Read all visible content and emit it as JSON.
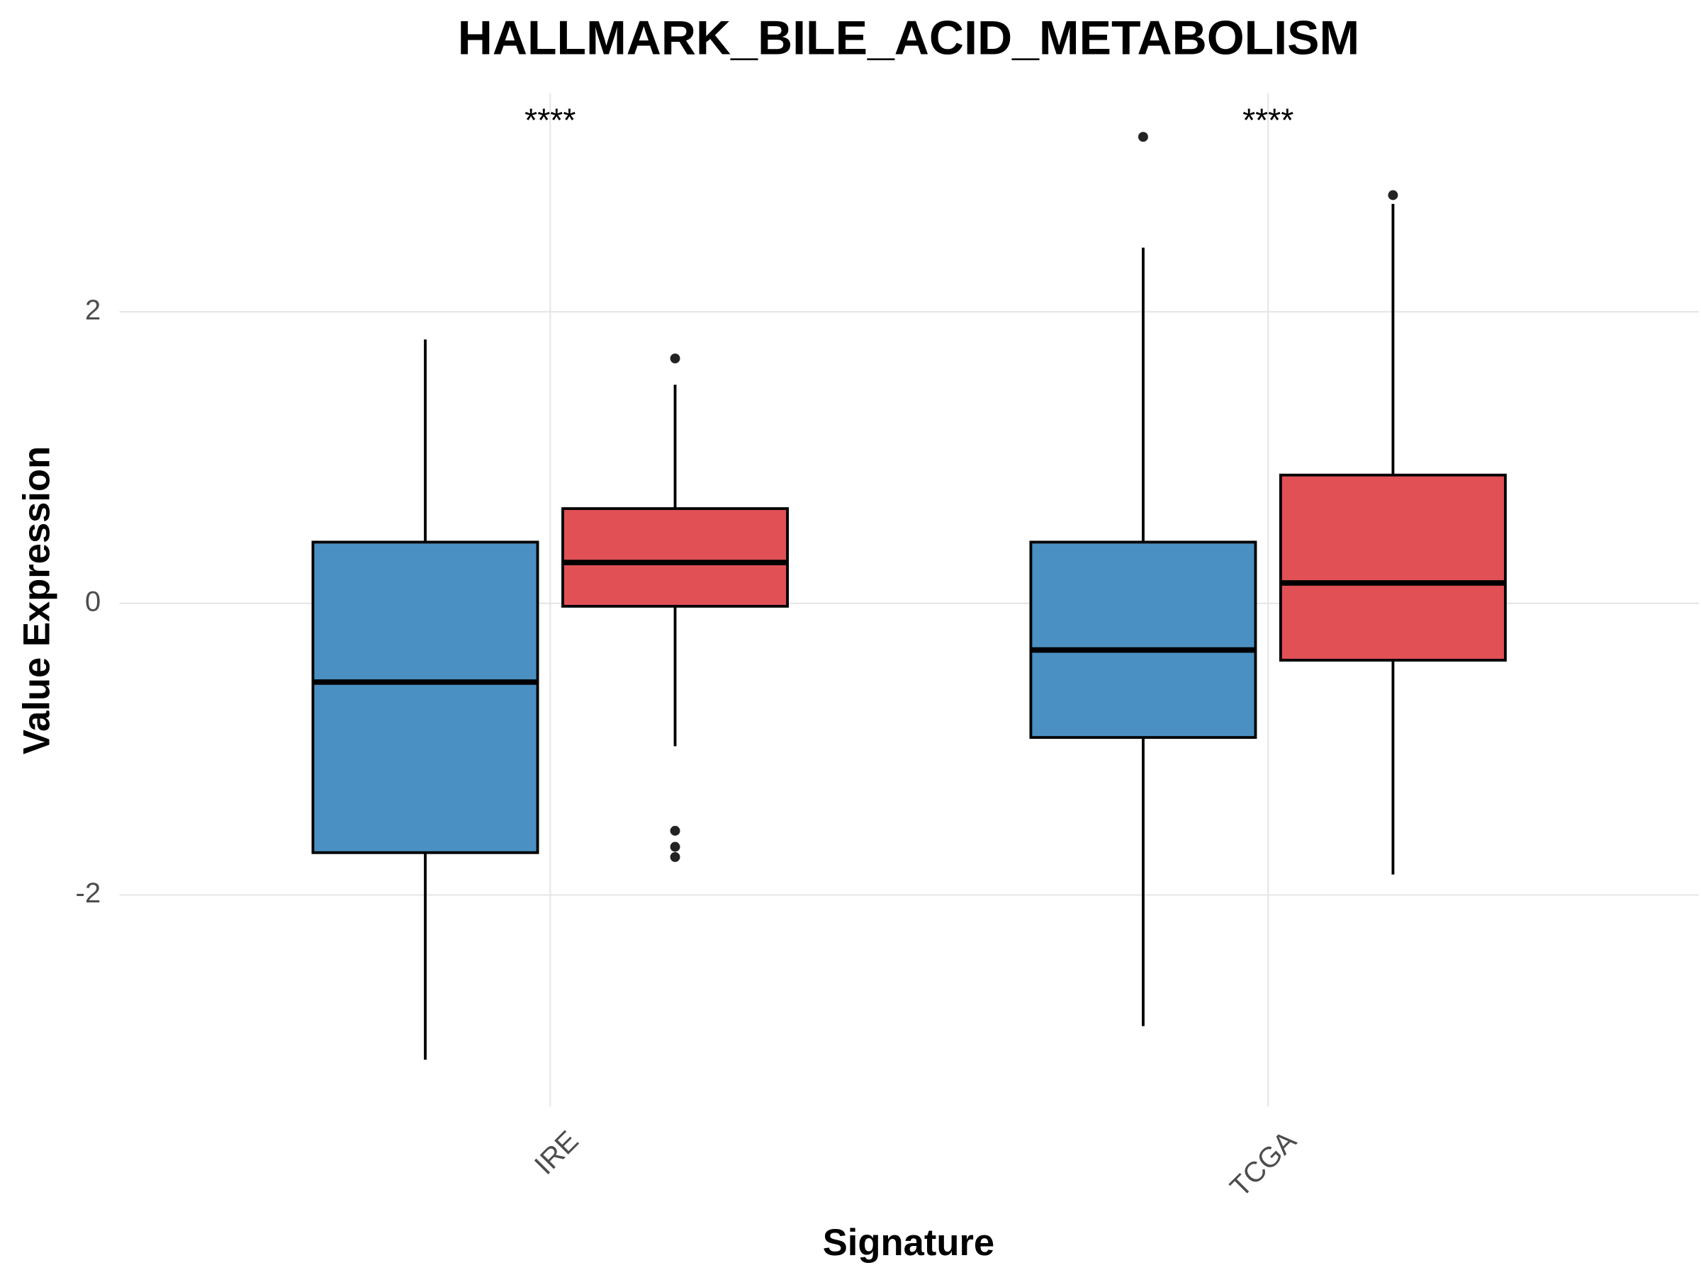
{
  "chart_data": {
    "type": "box",
    "title": "HALLMARK_BILE_ACID_METABOLISM",
    "x_label": "Signature",
    "y_label": "Value Expression",
    "categories": [
      "IRE",
      "TCGA"
    ],
    "annotations": [
      "****",
      "****"
    ],
    "ylim": [
      -3.45,
      3.5
    ],
    "yticks": [
      -2,
      0,
      2
    ],
    "grid": true,
    "series": [
      {
        "color": "#4a90c2",
        "boxes": [
          {
            "whislo": -3.13,
            "q1": -1.71,
            "med": -0.54,
            "q3": 0.42,
            "whishi": 1.81,
            "outliers": []
          },
          {
            "whislo": -2.9,
            "q1": -0.92,
            "med": -0.32,
            "q3": 0.42,
            "whishi": 2.44,
            "outliers": [
              3.2
            ]
          }
        ]
      },
      {
        "color": "#e05055",
        "boxes": [
          {
            "whislo": -0.98,
            "q1": -0.02,
            "med": 0.28,
            "q3": 0.65,
            "whishi": 1.5,
            "outliers": [
              1.68,
              -1.56,
              -1.67,
              -1.74
            ]
          },
          {
            "whislo": -1.86,
            "q1": -0.39,
            "med": 0.14,
            "q3": 0.88,
            "whishi": 2.74,
            "outliers": [
              2.8
            ]
          }
        ]
      }
    ]
  }
}
